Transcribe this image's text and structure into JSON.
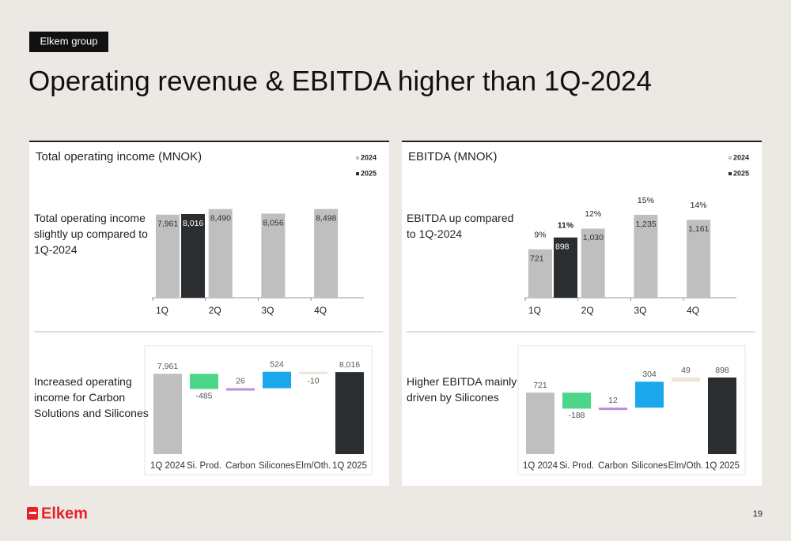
{
  "tag": "Elkem group",
  "title": "Operating revenue & EBITDA higher than 1Q-2024",
  "logo": "Elkem",
  "page_number": "19",
  "chart_data": [
    {
      "type": "bar",
      "title": "Total operating income (MNOK)",
      "annotation": "Total operating income slightly up compared to 1Q-2024",
      "categories": [
        "1Q",
        "2Q",
        "3Q",
        "4Q"
      ],
      "ylim": [
        0,
        9000
      ],
      "series": [
        {
          "name": "2024",
          "color": "#bfbfbf",
          "values": [
            7961,
            8490,
            8056,
            8498
          ],
          "value_labels": [
            "7,961",
            "8,490",
            "8,056",
            "8,498"
          ]
        },
        {
          "name": "2025",
          "color": "#2b2e31",
          "values": [
            8016,
            null,
            null,
            null
          ],
          "value_labels": [
            "8,016",
            null,
            null,
            null
          ]
        }
      ]
    },
    {
      "type": "bar",
      "title": "EBITDA (MNOK)",
      "annotation": "EBITDA up compared to 1Q-2024",
      "categories": [
        "1Q",
        "2Q",
        "3Q",
        "4Q"
      ],
      "ylim": [
        0,
        1400
      ],
      "series": [
        {
          "name": "2024",
          "color": "#bfbfbf",
          "values": [
            721,
            1030,
            1235,
            1161
          ],
          "value_labels": [
            "721",
            "1,030",
            "1,235",
            "1,161"
          ],
          "margins": [
            9,
            12,
            15,
            14
          ],
          "margin_labels": [
            "9%",
            "12%",
            "15%",
            "14%"
          ]
        },
        {
          "name": "2025",
          "color": "#2b2e31",
          "values": [
            898,
            null,
            null,
            null
          ],
          "margins": [
            11,
            null,
            null,
            null
          ],
          "margin_labels": [
            "11%",
            null,
            null,
            null
          ]
        }
      ]
    },
    {
      "type": "waterfall",
      "annotation": "Increased operating income for Carbon Solutions and Silicones",
      "categories": [
        "1Q 2024",
        "Si. Prod.",
        "Carbon",
        "Silicones",
        "Elm/Oth.",
        "1Q 2025"
      ],
      "values": [
        7961,
        -485,
        26,
        524,
        -10,
        8016
      ],
      "value_labels": [
        "7,961",
        "-485",
        "26",
        "524",
        "-10",
        "8,016"
      ],
      "colors": [
        "#bfbfbf",
        "#4cd68a",
        "#b88ee0",
        "#1aa7ec",
        "#efe4da",
        "#2b2e31"
      ],
      "ylim": [
        5400,
        8800
      ]
    },
    {
      "type": "waterfall",
      "annotation": "Higher EBITDA mainly driven by Silicones",
      "categories": [
        "1Q 2024",
        "Si. Prod.",
        "Carbon",
        "Silicones",
        "Elm/Oth.",
        "1Q 2025"
      ],
      "values": [
        721,
        -188,
        12,
        304,
        49,
        898
      ],
      "colors": [
        "#bfbfbf",
        "#4cd68a",
        "#b88ee0",
        "#1aa7ec",
        "#efe4da",
        "#2b2e31"
      ],
      "ylim": [
        0,
        1250
      ]
    }
  ]
}
